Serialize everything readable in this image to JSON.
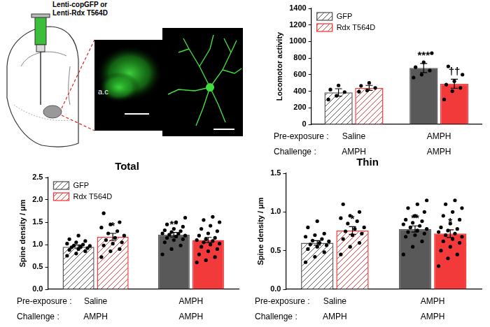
{
  "schematic": {
    "injection_label": [
      "Lenti-copGFP or",
      "Lenti-Rdx T564D"
    ],
    "region_label": "a.c"
  },
  "chart_data": [
    {
      "type": "bar",
      "y_label": "Locomotor activity",
      "categories": [
        [
          "Saline",
          "AMPH"
        ],
        [
          "AMPH",
          "AMPH"
        ]
      ],
      "row_labels": [
        "Pre-exposure :",
        "Challenge :"
      ],
      "ylim": [
        0,
        1400
      ],
      "yticks": [
        0,
        200,
        400,
        600,
        800,
        1000,
        1200,
        1400
      ],
      "grid": false,
      "legend": "upper left",
      "series": [
        {
          "name": "GFP",
          "color": "#595959",
          "values": [
            385,
            680
          ],
          "errors": [
            45,
            55
          ],
          "points": [
            [
              300,
              345,
              390,
              420,
              470
            ],
            [
              565,
              600,
              650,
              690,
              750,
              860
            ]
          ]
        },
        {
          "name": "Rdx T564D",
          "color": "#f23a3a",
          "values": [
            440,
            490
          ],
          "errors": [
            30,
            55
          ],
          "points": [
            [
              395,
              410,
              440,
              465,
              500
            ],
            [
              300,
              400,
              440,
              480,
              520,
              600,
              700
            ]
          ]
        }
      ],
      "annotations": [
        {
          "series": "GFP",
          "category": 1,
          "text": "***"
        },
        {
          "series": "Rdx T564D",
          "category": 1,
          "text": "††"
        }
      ]
    },
    {
      "type": "bar",
      "title": "Total",
      "y_label": "Spine density / μm",
      "categories": [
        [
          "Saline",
          "AMPH"
        ],
        [
          "AMPH",
          "AMPH"
        ]
      ],
      "row_labels": [
        "Pre-exposure :",
        "Challenge :"
      ],
      "ylim": [
        0,
        2.5
      ],
      "yticks": [
        {
          "value": 0,
          "label": "0.0"
        },
        {
          "value": 0.5,
          "label": "0.5"
        },
        {
          "value": 1,
          "label": "1.0"
        },
        {
          "value": 1.5,
          "label": "1.5"
        },
        {
          "value": 2,
          "label": "2.0"
        },
        {
          "value": 2.5,
          "label": "2.5"
        }
      ],
      "grid": false,
      "legend": "upper left",
      "series": [
        {
          "name": "GFP",
          "color": "#595959",
          "values": [
            0.95,
            1.22
          ],
          "errors": [
            0.04,
            0.05
          ],
          "points": [
            [
              0.75,
              0.8,
              0.85,
              0.88,
              0.9,
              0.92,
              0.94,
              0.95,
              0.97,
              0.98,
              1.0,
              1.02,
              1.05,
              1.08,
              1.12,
              1.2
            ],
            [
              0.78,
              0.9,
              0.98,
              1.05,
              1.1,
              1.12,
              1.15,
              1.18,
              1.2,
              1.22,
              1.24,
              1.25,
              1.28,
              1.3,
              1.32,
              1.35,
              1.4,
              1.45,
              1.5,
              1.6
            ]
          ]
        },
        {
          "name": "Rdx T564D",
          "color": "#f23a3a",
          "values": [
            1.17,
            1.1
          ],
          "errors": [
            0.08,
            0.06
          ],
          "points": [
            [
              0.72,
              0.85,
              0.9,
              0.98,
              1.02,
              1.05,
              1.1,
              1.15,
              1.2,
              1.25,
              1.3,
              1.38,
              1.45,
              1.5,
              1.7
            ],
            [
              0.6,
              0.65,
              0.72,
              0.78,
              0.85,
              0.9,
              0.95,
              1.0,
              1.02,
              1.05,
              1.08,
              1.1,
              1.12,
              1.15,
              1.2,
              1.25,
              1.3,
              1.35,
              1.42,
              1.5,
              1.55,
              1.62
            ]
          ]
        }
      ],
      "annotations": [
        {
          "series": "Rdx T564D",
          "category": 0,
          "text": "*"
        },
        {
          "series": "GFP",
          "category": 1,
          "text": "**"
        }
      ]
    },
    {
      "type": "bar",
      "title": "Thin",
      "y_label": "Spine density / μm",
      "categories": [
        [
          "Saline",
          "AMPH"
        ],
        [
          "AMPH",
          "AMPH"
        ]
      ],
      "row_labels": [
        "Pre-exposure :",
        "Challenge :"
      ],
      "ylim": [
        0,
        1.5
      ],
      "yticks": [
        {
          "value": 0,
          "label": "0.0"
        },
        {
          "value": 0.5,
          "label": "0.5"
        },
        {
          "value": 1,
          "label": "1.0"
        },
        {
          "value": 1.5,
          "label": "1.5"
        }
      ],
      "grid": false,
      "series": [
        {
          "name": "GFP",
          "color": "#595959",
          "values": [
            0.6,
            0.78
          ],
          "errors": [
            0.03,
            0.04
          ],
          "points": [
            [
              0.35,
              0.42,
              0.48,
              0.52,
              0.55,
              0.57,
              0.58,
              0.6,
              0.62,
              0.63,
              0.65,
              0.68,
              0.7,
              0.72,
              0.8,
              0.88
            ],
            [
              0.45,
              0.55,
              0.62,
              0.68,
              0.7,
              0.72,
              0.74,
              0.76,
              0.78,
              0.8,
              0.82,
              0.84,
              0.86,
              0.88,
              0.9,
              0.95,
              1.0,
              1.05,
              1.1,
              1.15
            ]
          ]
        },
        {
          "name": "Rdx T564D",
          "color": "#f23a3a",
          "values": [
            0.76,
            0.72
          ],
          "errors": [
            0.05,
            0.05
          ],
          "points": [
            [
              0.45,
              0.55,
              0.6,
              0.65,
              0.7,
              0.72,
              0.75,
              0.78,
              0.8,
              0.85,
              0.88,
              0.92,
              0.95,
              1.0,
              1.1
            ],
            [
              0.3,
              0.4,
              0.45,
              0.5,
              0.55,
              0.6,
              0.62,
              0.65,
              0.68,
              0.7,
              0.72,
              0.74,
              0.76,
              0.78,
              0.8,
              0.85,
              0.9,
              0.95,
              1.0,
              1.05,
              1.1,
              1.15
            ]
          ]
        }
      ],
      "annotations": [
        {
          "series": "Rdx T564D",
          "category": 0,
          "text": "*"
        },
        {
          "series": "GFP",
          "category": 1,
          "text": "**"
        },
        {
          "series": "Rdx T564D",
          "category": 1,
          "text": "*"
        }
      ]
    }
  ]
}
